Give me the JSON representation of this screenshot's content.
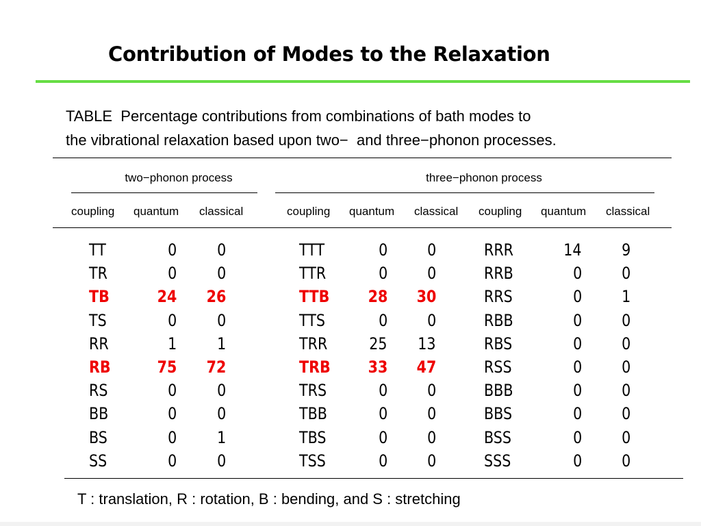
{
  "title": "Contribution of Modes to the Relaxation",
  "caption": {
    "line1": "TABLE  Percentage contributions from combinations of bath modes to",
    "line2": "the vibrational relaxation based upon two−  and three−phonon processes."
  },
  "headers": {
    "two_phonon": "two−phonon process",
    "three_phonon": "three−phonon process",
    "columns": [
      "coupling",
      "quantum",
      "classical",
      "coupling",
      "quantum",
      "classical",
      "coupling",
      "quantum",
      "classical"
    ]
  },
  "two_phonon_rows": [
    {
      "coupling": "TT",
      "quantum": "0",
      "classical": "0",
      "highlight": false
    },
    {
      "coupling": "TR",
      "quantum": "0",
      "classical": "0",
      "highlight": false
    },
    {
      "coupling": "TB",
      "quantum": "24",
      "classical": "26",
      "highlight": true
    },
    {
      "coupling": "TS",
      "quantum": "0",
      "classical": "0",
      "highlight": false
    },
    {
      "coupling": "RR",
      "quantum": "1",
      "classical": "1",
      "highlight": false
    },
    {
      "coupling": "RB",
      "quantum": "75",
      "classical": "72",
      "highlight": true
    },
    {
      "coupling": "RS",
      "quantum": "0",
      "classical": "0",
      "highlight": false
    },
    {
      "coupling": "BB",
      "quantum": "0",
      "classical": "0",
      "highlight": false
    },
    {
      "coupling": "BS",
      "quantum": "0",
      "classical": "1",
      "highlight": false
    },
    {
      "coupling": "SS",
      "quantum": "0",
      "classical": "0",
      "highlight": false
    }
  ],
  "three_phonon_rows_a": [
    {
      "coupling": "TTT",
      "quantum": "0",
      "classical": "0",
      "highlight": false
    },
    {
      "coupling": "TTR",
      "quantum": "0",
      "classical": "0",
      "highlight": false
    },
    {
      "coupling": "TTB",
      "quantum": "28",
      "classical": "30",
      "highlight": true
    },
    {
      "coupling": "TTS",
      "quantum": "0",
      "classical": "0",
      "highlight": false
    },
    {
      "coupling": "TRR",
      "quantum": "25",
      "classical": "13",
      "highlight": false
    },
    {
      "coupling": "TRB",
      "quantum": "33",
      "classical": "47",
      "highlight": true
    },
    {
      "coupling": "TRS",
      "quantum": "0",
      "classical": "0",
      "highlight": false
    },
    {
      "coupling": "TBB",
      "quantum": "0",
      "classical": "0",
      "highlight": false
    },
    {
      "coupling": "TBS",
      "quantum": "0",
      "classical": "0",
      "highlight": false
    },
    {
      "coupling": "TSS",
      "quantum": "0",
      "classical": "0",
      "highlight": false
    }
  ],
  "three_phonon_rows_b": [
    {
      "coupling": "RRR",
      "quantum": "14",
      "classical": "9",
      "highlight": false
    },
    {
      "coupling": "RRB",
      "quantum": "0",
      "classical": "0",
      "highlight": false
    },
    {
      "coupling": "RRS",
      "quantum": "0",
      "classical": "1",
      "highlight": false
    },
    {
      "coupling": "RBB",
      "quantum": "0",
      "classical": "0",
      "highlight": false
    },
    {
      "coupling": "RBS",
      "quantum": "0",
      "classical": "0",
      "highlight": false
    },
    {
      "coupling": "RSS",
      "quantum": "0",
      "classical": "0",
      "highlight": false
    },
    {
      "coupling": "BBB",
      "quantum": "0",
      "classical": "0",
      "highlight": false
    },
    {
      "coupling": "BBS",
      "quantum": "0",
      "classical": "0",
      "highlight": false
    },
    {
      "coupling": "BSS",
      "quantum": "0",
      "classical": "0",
      "highlight": false
    },
    {
      "coupling": "SSS",
      "quantum": "0",
      "classical": "0",
      "highlight": false
    }
  ],
  "footnote": "T : translation, R : rotation, B : bending, and S : stretching",
  "colors": {
    "title_rule": "#66dd44",
    "highlight": "#ee0000"
  }
}
